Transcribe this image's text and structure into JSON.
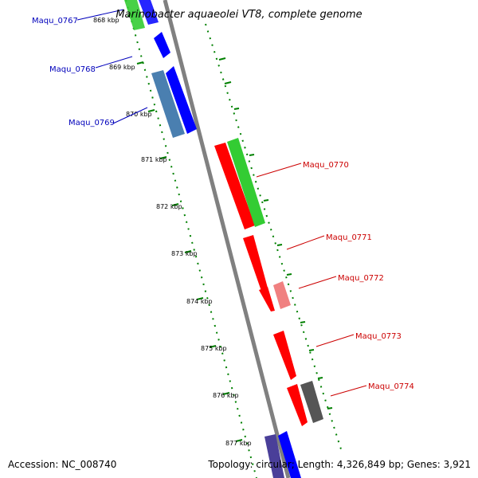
{
  "title": "Marinobacter aquaeolei VT8, complete genome",
  "footer": {
    "accession": "Accession: NC_008740",
    "summary": "Topology: circular; Length: 4,326,849 bp; Genes: 3,921"
  },
  "ticks": [
    "868 kbp",
    "869 kbp",
    "870 kbp",
    "871 kbp",
    "872 kbp",
    "873 kbp",
    "874 kbp",
    "875 kbp",
    "876 kbp",
    "877 kbp"
  ],
  "genes_left": [
    {
      "label": "Maqu_0767",
      "color": "#0000bb"
    },
    {
      "label": "Maqu_0768",
      "color": "#0000bb"
    },
    {
      "label": "Maqu_0769",
      "color": "#0000bb"
    }
  ],
  "genes_right": [
    {
      "label": "Maqu_0770",
      "color": "#cc0000"
    },
    {
      "label": "Maqu_0771",
      "color": "#cc0000"
    },
    {
      "label": "Maqu_0772",
      "color": "#cc0000"
    },
    {
      "label": "Maqu_0773",
      "color": "#cc0000"
    },
    {
      "label": "Maqu_0774",
      "color": "#cc0000"
    }
  ],
  "colors": {
    "backbone": "#808080",
    "tick_dots": "#008000",
    "cds_forward": "#0000ff",
    "cds_reverse": "#ff0000",
    "feature_green": "#33cc33",
    "feature_steelblue": "#4a7fb0",
    "feature_pink": "#f08080",
    "feature_gray": "#555555",
    "feature_purple": "#4a3f99"
  }
}
